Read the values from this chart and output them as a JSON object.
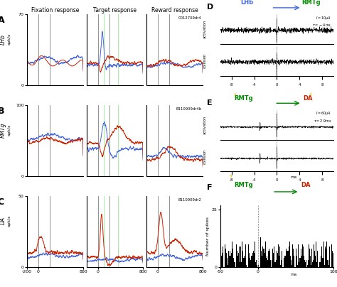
{
  "col_labels": [
    "Fixation response",
    "Target response",
    "Reward response"
  ],
  "y_maxes": [
    70,
    100,
    50
  ],
  "cell_ids": [
    "C012709dr4",
    "B110909dr4b",
    "B110909dr2"
  ],
  "colors": {
    "blue": "#4466dd",
    "red": "#cc2200",
    "green": "#008800",
    "olive": "#888800",
    "yellow": "#ddbb00"
  },
  "vert_lines_gray": [
    0,
    200
  ],
  "vert_lines_green": [
    100,
    350
  ],
  "xlim_left": [
    -200,
    800
  ],
  "xlim_right": [
    -10,
    10
  ],
  "xlim_hist": [
    -50,
    100
  ]
}
